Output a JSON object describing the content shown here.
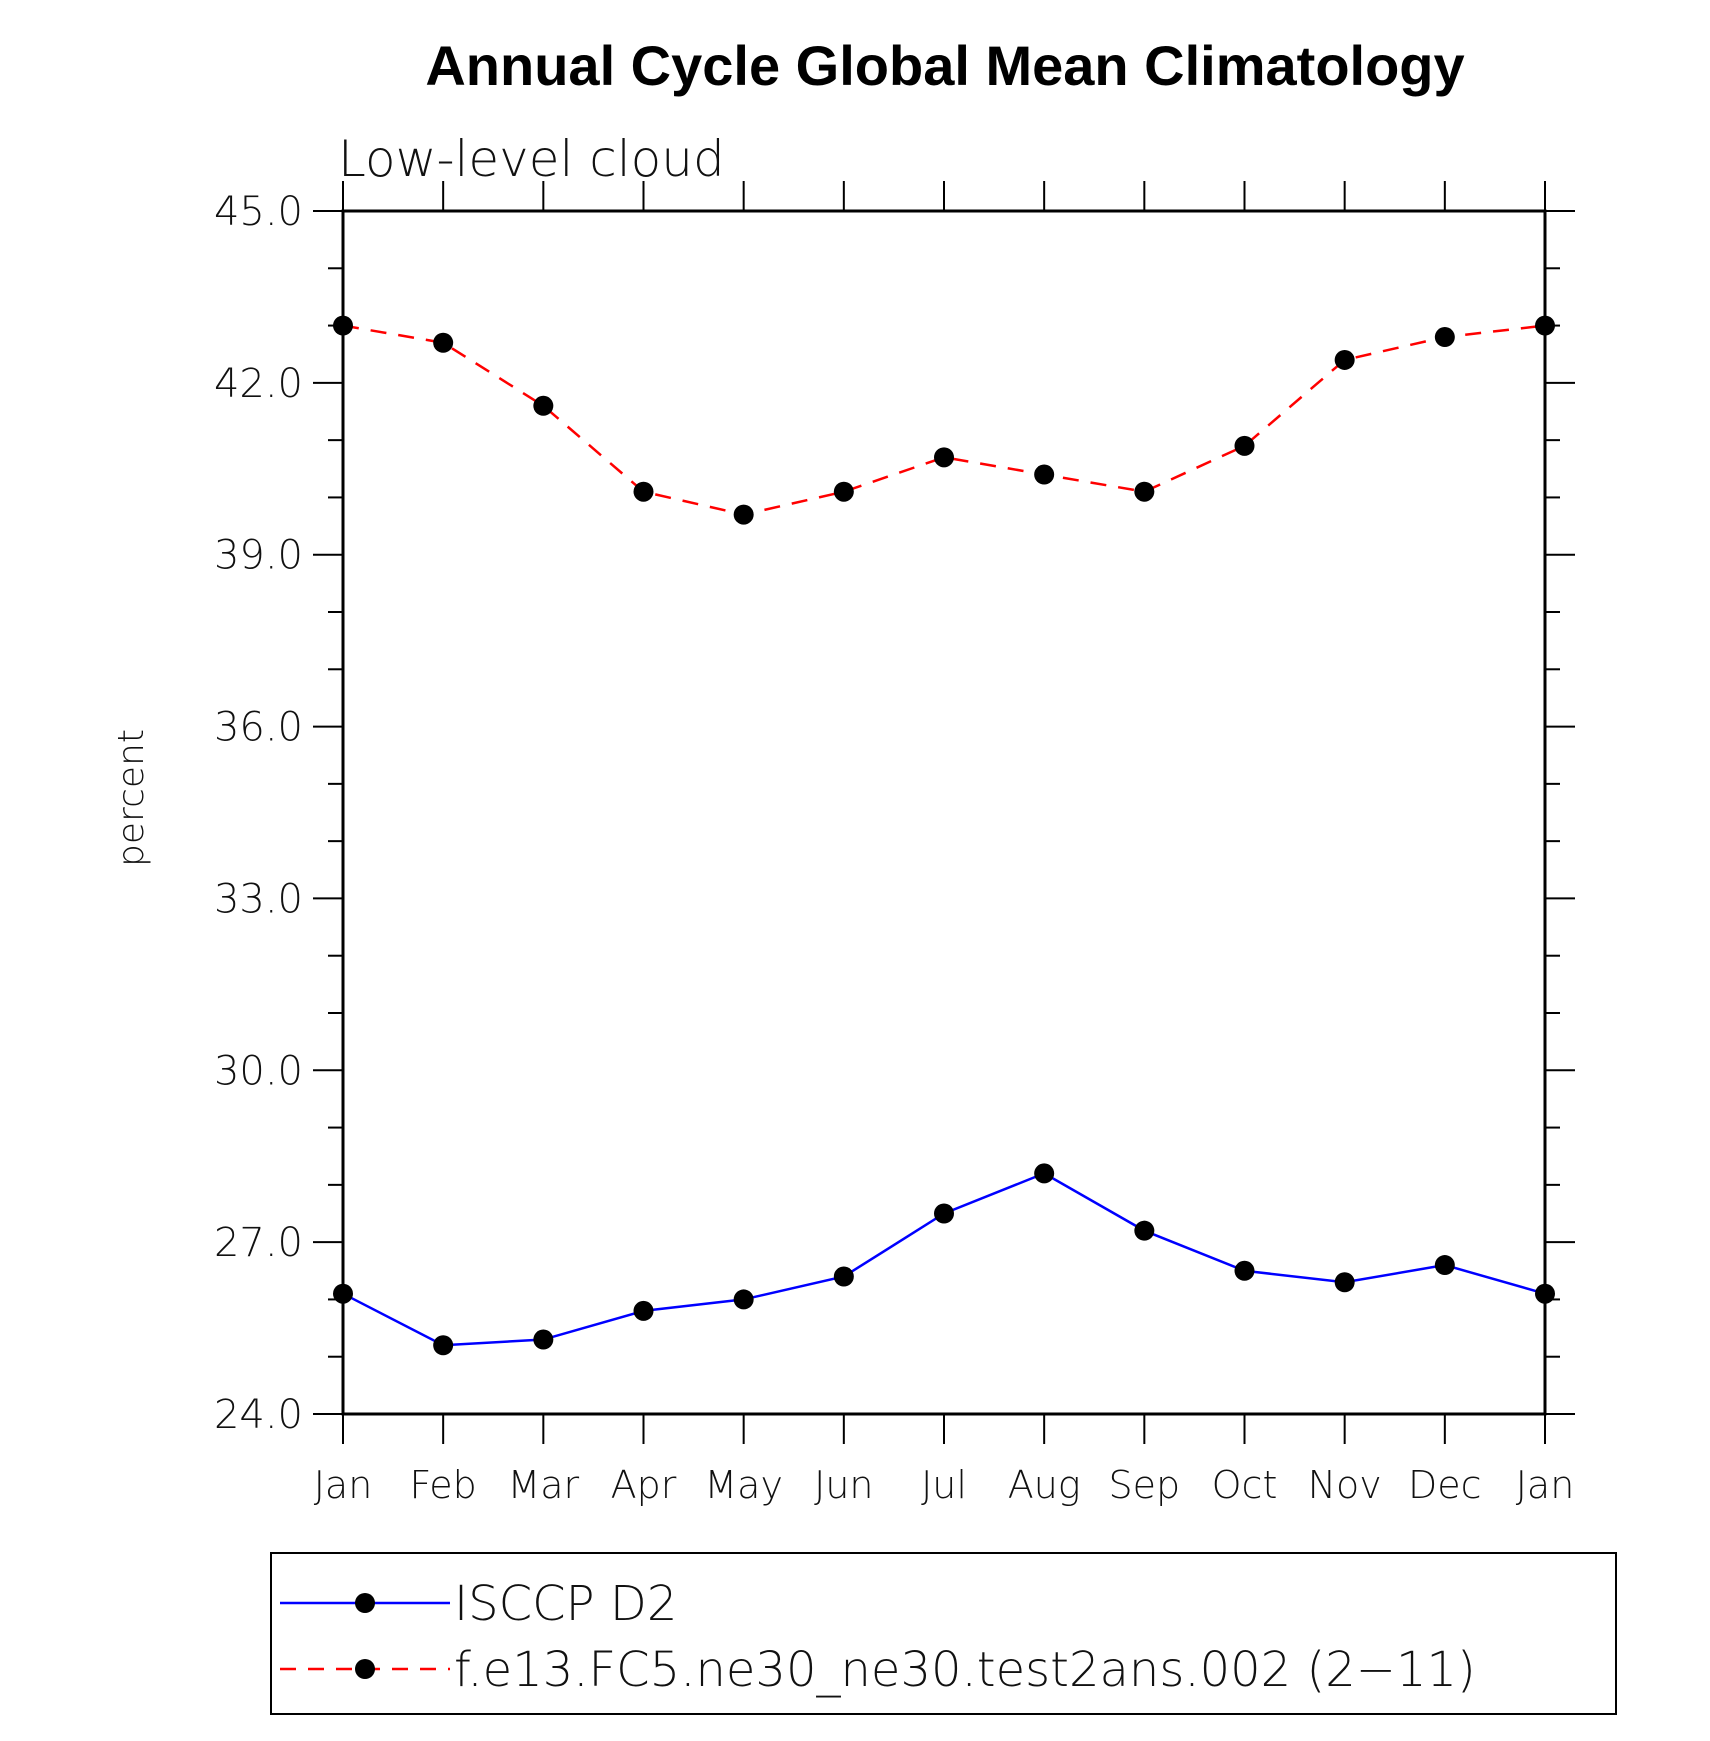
{
  "chart_data": {
    "type": "line",
    "title": "Annual Cycle Global Mean Climatology",
    "subtitle": "Low-level cloud",
    "ylabel": "percent",
    "xlabel": "",
    "categories": [
      "Jan",
      "Feb",
      "Mar",
      "Apr",
      "May",
      "Jun",
      "Jul",
      "Aug",
      "Sep",
      "Oct",
      "Nov",
      "Dec",
      "Jan"
    ],
    "ylim": [
      24.0,
      45.0
    ],
    "yticks": [
      "24.0",
      "27.0",
      "30.0",
      "33.0",
      "36.0",
      "39.0",
      "42.0",
      "45.0"
    ],
    "grid": false,
    "legend_position": "bottom",
    "series": [
      {
        "name": "ISCCP D2",
        "color": "#0000ff",
        "style": "solid",
        "marker": "filled-circle",
        "values": [
          26.1,
          25.2,
          25.3,
          25.8,
          26.0,
          26.4,
          27.5,
          28.2,
          27.2,
          26.5,
          26.3,
          26.6,
          26.1
        ]
      },
      {
        "name": "f.e13.FC5.ne30_ne30.test2ans.002 (2−11)",
        "color": "#ff0000",
        "style": "dashed",
        "marker": "filled-circle",
        "values": [
          43.0,
          42.7,
          41.6,
          40.1,
          39.7,
          40.1,
          40.7,
          40.4,
          40.1,
          40.9,
          42.4,
          42.8,
          43.0
        ]
      }
    ]
  }
}
